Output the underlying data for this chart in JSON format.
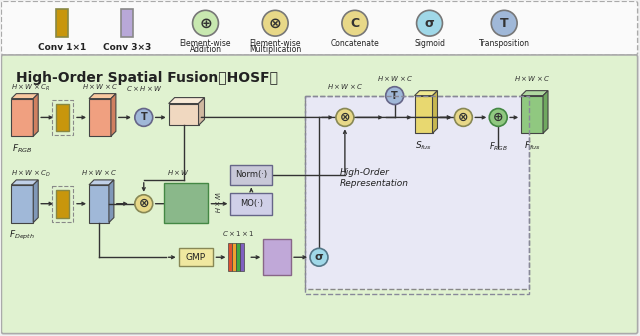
{
  "title_legend": "High-Order Spatial Fusion（HOSF）",
  "legend_items": [
    {
      "label": "Conv 1×1",
      "color": "#c8960c",
      "shape": "rect_tall"
    },
    {
      "label": "Conv 3×3",
      "color": "#b0a0d0",
      "shape": "rect_tall"
    },
    {
      "label": "Element-wise\nAddition",
      "color": "#90c080",
      "symbol": "plus_circle"
    },
    {
      "label": "Element-wise\nMultiplication",
      "color": "#e0c060",
      "symbol": "cross_circle"
    },
    {
      "label": "Concatenate",
      "color": "#e0c060",
      "symbol": "C_circle"
    },
    {
      "label": "Sigmoid",
      "color": "#80c0d0",
      "symbol": "sigma_circle"
    },
    {
      "label": "Transposition",
      "color": "#80a0c0",
      "symbol": "T_circle"
    }
  ],
  "bg_color": "#e8f5e0",
  "legend_bg": "#f5f5f5",
  "border_color": "#888888"
}
